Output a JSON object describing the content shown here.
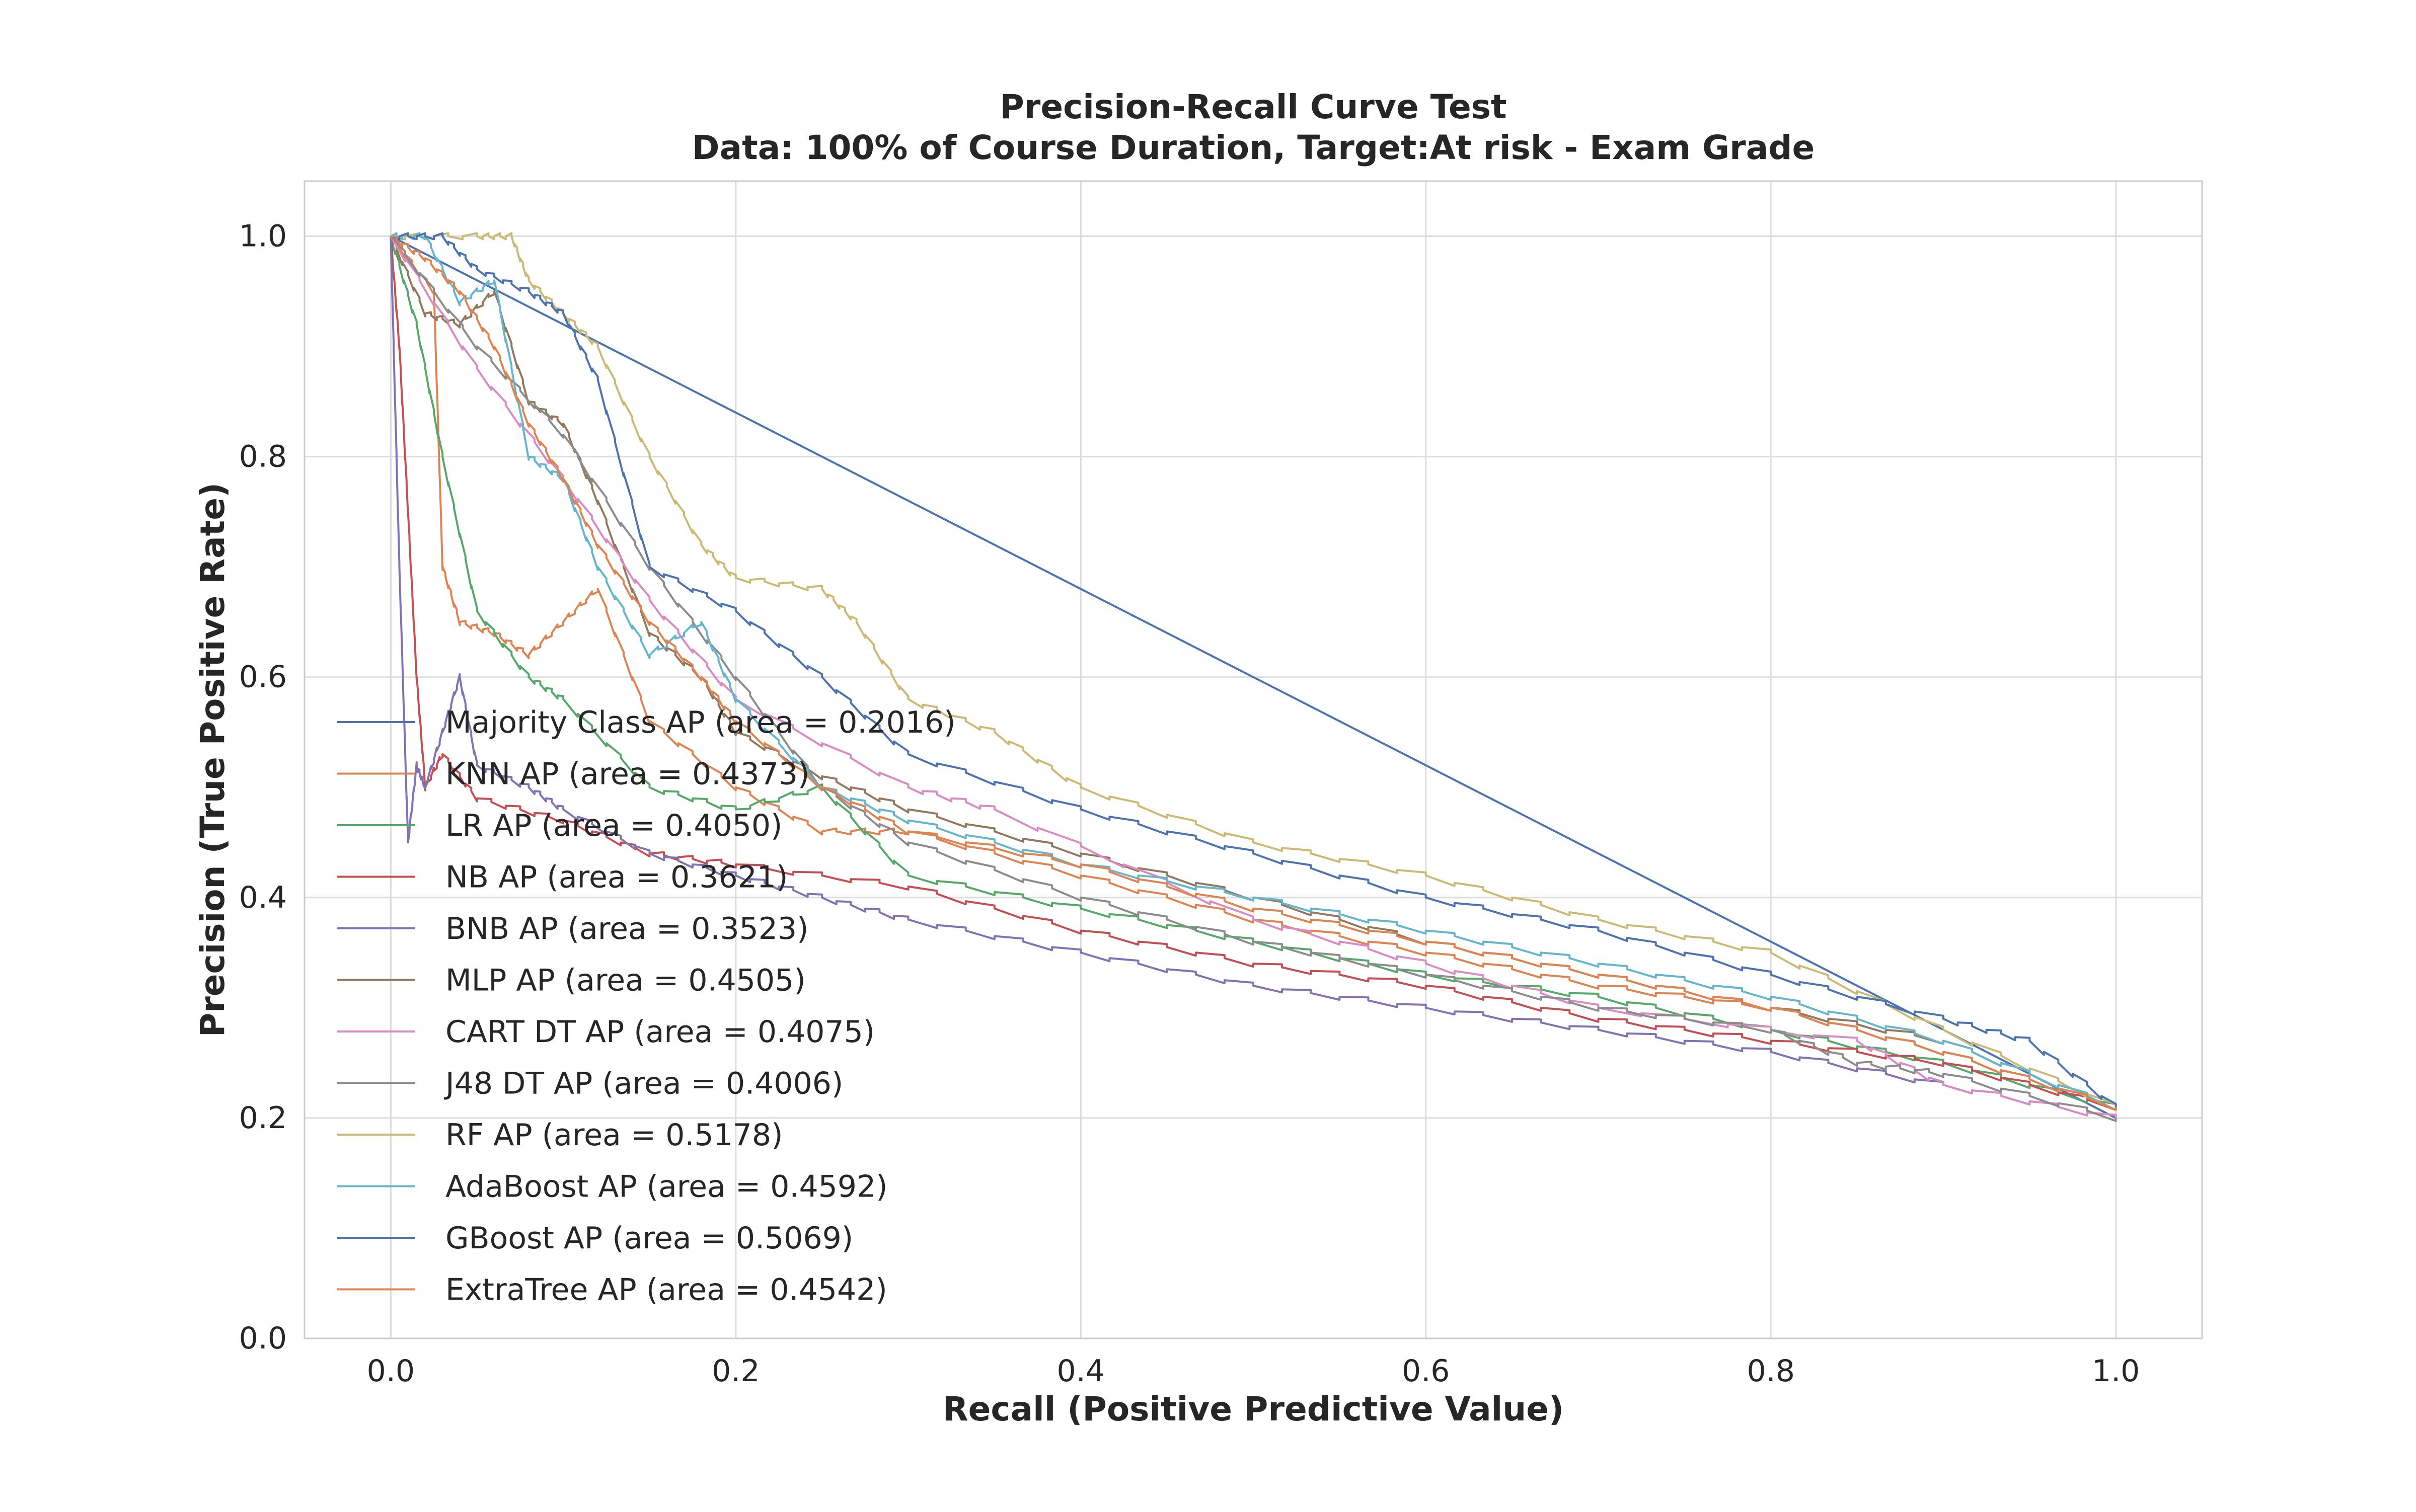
{
  "chart_data": {
    "type": "line",
    "title": "Precision-Recall Curve Test",
    "subtitle": "Data: 100% of Course Duration, Target:At risk - Exam Grade",
    "xlabel": "Recall (Positive Predictive Value)",
    "ylabel": "Precision (True Positive Rate)",
    "xlim": [
      -0.05,
      1.05
    ],
    "ylim": [
      0.0,
      1.05
    ],
    "x_ticks": [
      "0.0",
      "0.2",
      "0.4",
      "0.6",
      "0.8",
      "1.0"
    ],
    "y_ticks": [
      "0.0",
      "0.2",
      "0.4",
      "0.6",
      "0.8",
      "1.0"
    ],
    "grid": true,
    "legend_position": "left",
    "series": [
      {
        "name": "Majority Class AP (area = 0.2016)",
        "color": "#4c72b0",
        "x": [
          0.0,
          1.0
        ],
        "y": [
          1.0,
          0.2
        ]
      },
      {
        "name": "KNN AP (area = 0.4373)",
        "color": "#dd8452",
        "x": [
          0.0,
          0.025,
          0.03,
          0.04,
          0.06,
          0.08,
          0.1,
          0.12,
          0.15,
          0.2,
          0.25,
          0.3,
          0.4,
          0.5,
          0.6,
          0.7,
          0.8,
          0.9,
          1.0
        ],
        "y": [
          1.0,
          0.95,
          0.7,
          0.65,
          0.64,
          0.62,
          0.65,
          0.68,
          0.56,
          0.5,
          0.46,
          0.46,
          0.42,
          0.38,
          0.35,
          0.32,
          0.3,
          0.26,
          0.21
        ]
      },
      {
        "name": "LR AP (area = 0.4050)",
        "color": "#55a868",
        "x": [
          0.0,
          0.015,
          0.03,
          0.05,
          0.08,
          0.1,
          0.15,
          0.2,
          0.25,
          0.3,
          0.4,
          0.5,
          0.6,
          0.7,
          0.8,
          0.9,
          1.0
        ],
        "y": [
          1.0,
          0.92,
          0.8,
          0.66,
          0.6,
          0.58,
          0.5,
          0.48,
          0.5,
          0.42,
          0.39,
          0.36,
          0.33,
          0.31,
          0.28,
          0.25,
          0.21
        ]
      },
      {
        "name": "NB AP (area = 0.3621)",
        "color": "#c44e52",
        "x": [
          0.0,
          0.005,
          0.01,
          0.015,
          0.02,
          0.03,
          0.05,
          0.1,
          0.15,
          0.2,
          0.3,
          0.4,
          0.5,
          0.6,
          0.7,
          0.8,
          0.9,
          1.0
        ],
        "y": [
          1.0,
          0.9,
          0.75,
          0.6,
          0.5,
          0.53,
          0.49,
          0.47,
          0.44,
          0.43,
          0.41,
          0.37,
          0.34,
          0.32,
          0.29,
          0.27,
          0.25,
          0.21
        ]
      },
      {
        "name": "BNB AP (area = 0.3523)",
        "color": "#8172b3",
        "x": [
          0.0,
          0.005,
          0.01,
          0.015,
          0.02,
          0.03,
          0.04,
          0.05,
          0.08,
          0.1,
          0.15,
          0.2,
          0.25,
          0.3,
          0.4,
          0.5,
          0.6,
          0.7,
          0.8,
          0.9,
          1.0
        ],
        "y": [
          1.0,
          0.7,
          0.45,
          0.52,
          0.5,
          0.55,
          0.6,
          0.52,
          0.5,
          0.48,
          0.44,
          0.42,
          0.4,
          0.38,
          0.35,
          0.32,
          0.3,
          0.28,
          0.26,
          0.23,
          0.2
        ]
      },
      {
        "name": "MLP AP (area = 0.4505)",
        "color": "#937860",
        "x": [
          0.0,
          0.02,
          0.04,
          0.06,
          0.08,
          0.1,
          0.12,
          0.15,
          0.18,
          0.2,
          0.25,
          0.3,
          0.4,
          0.5,
          0.6,
          0.7,
          0.8,
          0.9,
          1.0
        ],
        "y": [
          1.0,
          0.93,
          0.92,
          0.95,
          0.85,
          0.83,
          0.76,
          0.64,
          0.6,
          0.55,
          0.51,
          0.48,
          0.44,
          0.4,
          0.36,
          0.33,
          0.3,
          0.27,
          0.21
        ]
      },
      {
        "name": "CART DT AP (area = 0.4075)",
        "color": "#da8bc3",
        "x": [
          0.0,
          0.05,
          0.1,
          0.15,
          0.2,
          0.3,
          0.35,
          0.5,
          0.6,
          0.7,
          0.85,
          0.9,
          1.0
        ],
        "y": [
          1.0,
          0.88,
          0.78,
          0.67,
          0.58,
          0.5,
          0.48,
          0.38,
          0.34,
          0.3,
          0.27,
          0.23,
          0.2
        ]
      },
      {
        "name": "J48 DT AP (area = 0.4006)",
        "color": "#8c8c8c",
        "x": [
          0.0,
          0.05,
          0.1,
          0.15,
          0.2,
          0.25,
          0.3,
          0.4,
          0.5,
          0.6,
          0.7,
          0.8,
          0.85,
          0.9,
          1.0
        ],
        "y": [
          1.0,
          0.9,
          0.82,
          0.7,
          0.6,
          0.5,
          0.45,
          0.4,
          0.36,
          0.33,
          0.3,
          0.28,
          0.25,
          0.24,
          0.2
        ]
      },
      {
        "name": "RF AP (area = 0.5178)",
        "color": "#ccb974",
        "x": [
          0.0,
          0.05,
          0.07,
          0.08,
          0.1,
          0.12,
          0.15,
          0.18,
          0.2,
          0.25,
          0.27,
          0.3,
          0.35,
          0.4,
          0.5,
          0.6,
          0.7,
          0.8,
          0.9,
          1.0
        ],
        "y": [
          1.0,
          1.0,
          1.0,
          0.96,
          0.93,
          0.9,
          0.8,
          0.72,
          0.69,
          0.68,
          0.65,
          0.58,
          0.55,
          0.5,
          0.45,
          0.42,
          0.38,
          0.35,
          0.28,
          0.21
        ]
      },
      {
        "name": "AdaBoost AP (area = 0.4592)",
        "color": "#64b5cd",
        "x": [
          0.0,
          0.02,
          0.04,
          0.06,
          0.08,
          0.1,
          0.12,
          0.15,
          0.18,
          0.2,
          0.25,
          0.3,
          0.4,
          0.5,
          0.6,
          0.7,
          0.8,
          0.9,
          1.0
        ],
        "y": [
          1.0,
          1.0,
          0.94,
          0.96,
          0.8,
          0.78,
          0.7,
          0.62,
          0.65,
          0.58,
          0.5,
          0.47,
          0.43,
          0.4,
          0.37,
          0.34,
          0.31,
          0.27,
          0.21
        ]
      },
      {
        "name": "GBoost AP (area = 0.5069)",
        "color": "#4c72b0",
        "x": [
          0.0,
          0.03,
          0.05,
          0.08,
          0.1,
          0.12,
          0.15,
          0.2,
          0.25,
          0.3,
          0.4,
          0.5,
          0.6,
          0.7,
          0.8,
          0.9,
          0.95,
          1.0
        ],
        "y": [
          1.0,
          1.0,
          0.97,
          0.95,
          0.93,
          0.87,
          0.7,
          0.66,
          0.6,
          0.53,
          0.48,
          0.44,
          0.4,
          0.37,
          0.33,
          0.29,
          0.27,
          0.21
        ]
      },
      {
        "name": "ExtraTree AP (area = 0.4542)",
        "color": "#dd8452",
        "x": [
          0.0,
          0.02,
          0.04,
          0.06,
          0.08,
          0.1,
          0.12,
          0.15,
          0.18,
          0.2,
          0.25,
          0.3,
          0.4,
          0.5,
          0.6,
          0.7,
          0.8,
          0.9,
          1.0
        ],
        "y": [
          1.0,
          0.98,
          0.95,
          0.9,
          0.83,
          0.78,
          0.72,
          0.65,
          0.6,
          0.56,
          0.5,
          0.46,
          0.43,
          0.39,
          0.36,
          0.33,
          0.3,
          0.26,
          0.21
        ]
      }
    ]
  }
}
